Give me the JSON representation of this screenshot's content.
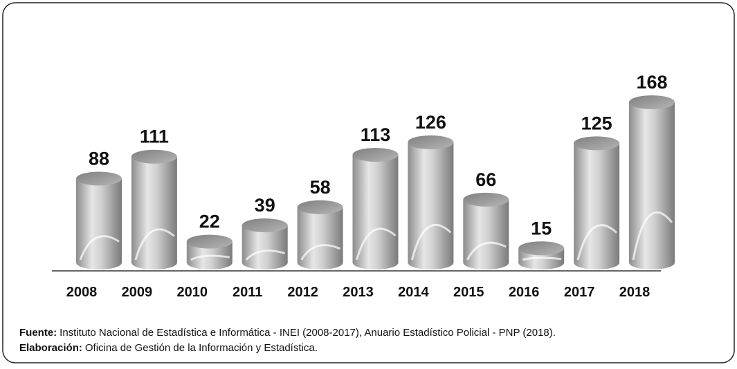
{
  "chart_data": {
    "type": "bar",
    "categories": [
      "2008",
      "2009",
      "2010",
      "2011",
      "2012",
      "2013",
      "2014",
      "2015",
      "2016",
      "2017",
      "2018"
    ],
    "values": [
      88,
      111,
      22,
      39,
      58,
      113,
      126,
      66,
      15,
      125,
      168
    ],
    "color": "#a6a6a6",
    "notes": [
      {
        "label": "Fuente:",
        "text": "Instituto Nacional de Estadística e Informática - INEI (2008-2017), Anuario Estadístico Policial - PNP (2018)."
      },
      {
        "label": "Elaboración:",
        "text": "Oficina de Gestión de la Información y Estadística."
      }
    ]
  }
}
